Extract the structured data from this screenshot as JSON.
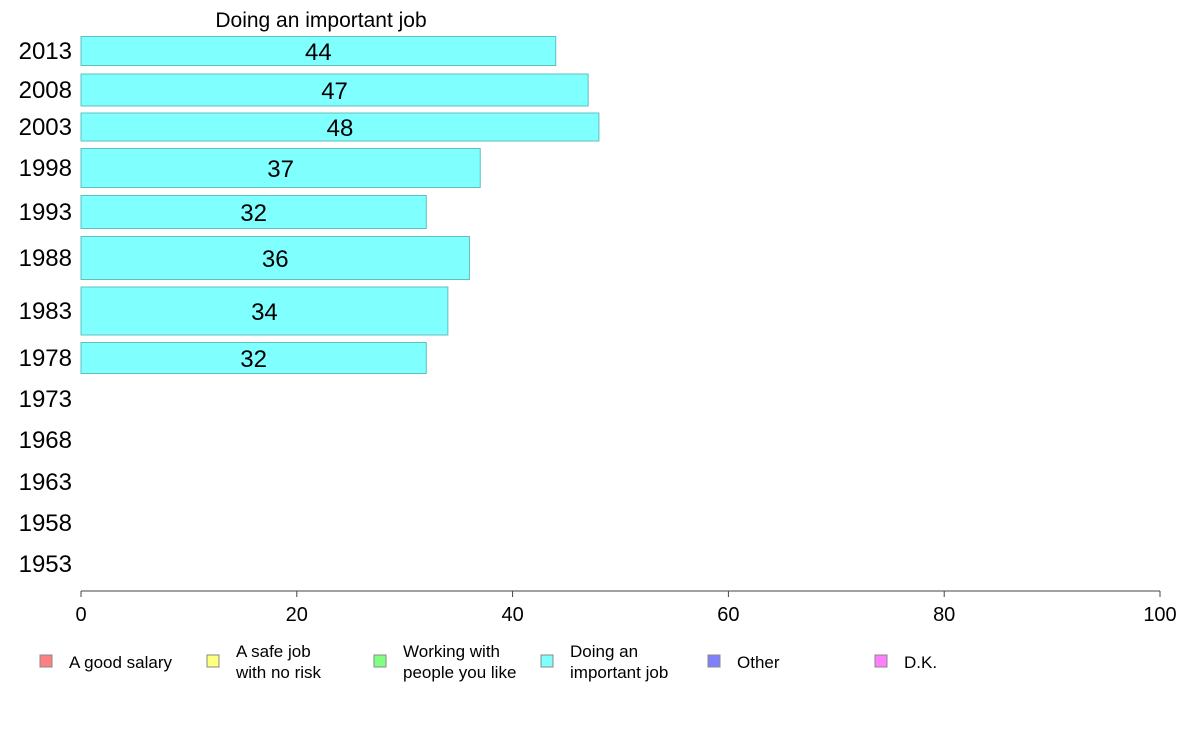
{
  "chart_data": {
    "type": "bar",
    "orientation": "horizontal",
    "title": "Doing an important job",
    "categories": [
      "2013",
      "2008",
      "2003",
      "1998",
      "1993",
      "1988",
      "1983",
      "1978",
      "1973",
      "1968",
      "1963",
      "1958",
      "1953"
    ],
    "series": [
      {
        "name": "Doing an important job",
        "values": [
          44,
          47,
          48,
          37,
          32,
          36,
          34,
          32,
          null,
          null,
          null,
          null,
          null
        ]
      }
    ],
    "bar_color": "#80ffff",
    "bar_border_color": "#5fbfbf",
    "xlim": [
      0,
      100
    ],
    "xticks": [
      "0",
      "20",
      "40",
      "60",
      "80",
      "100"
    ],
    "grid": false,
    "legend": {
      "placement": "bottom",
      "items": [
        {
          "lines": [
            "A good salary"
          ],
          "color": "#ff8080"
        },
        {
          "lines": [
            "A safe job",
            "with no risk"
          ],
          "color": "#ffff80"
        },
        {
          "lines": [
            "Working with",
            "people you like"
          ],
          "color": "#80ff80"
        },
        {
          "lines": [
            "Doing an",
            "important job"
          ],
          "color": "#80ffff"
        },
        {
          "lines": [
            "Other"
          ],
          "color": "#8080ff"
        },
        {
          "lines": [
            "D.K."
          ],
          "color": "#ff80ff"
        }
      ]
    }
  }
}
